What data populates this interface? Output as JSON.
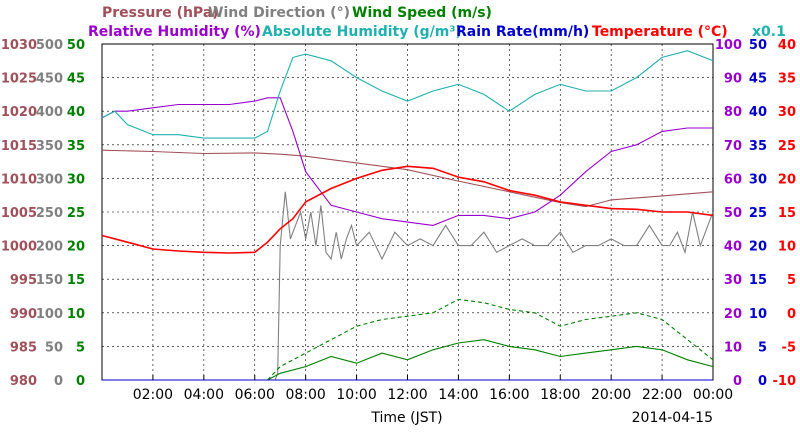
{
  "chart_data": {
    "type": "line",
    "xlabel": "Time (JST)",
    "date": "2014-04-15",
    "x_ticks": [
      "02:00",
      "04:00",
      "06:00",
      "08:00",
      "10:00",
      "12:00",
      "14:00",
      "16:00",
      "18:00",
      "20:00",
      "22:00",
      "00:00"
    ],
    "xlim": [
      0,
      24
    ],
    "grid": true,
    "legend_note": "x0.1",
    "axes": [
      {
        "id": "pressure",
        "label": "Pressure (hPa)",
        "color": "#a0505a",
        "range": [
          980,
          1030
        ],
        "ticks": [
          "980",
          "985",
          "990",
          "995",
          "1000",
          "1005",
          "1010",
          "1015",
          "1020",
          "1025",
          "1030"
        ]
      },
      {
        "id": "wind_dir",
        "label": "Wind Direction (°)",
        "color": "#808080",
        "range": [
          0,
          500
        ],
        "ticks": [
          "0",
          "50",
          "100",
          "150",
          "200",
          "250",
          "300",
          "350",
          "400",
          "450",
          "500"
        ]
      },
      {
        "id": "wind_speed",
        "label": "Wind Speed (m/s)",
        "color": "#008000",
        "range": [
          0,
          50
        ],
        "ticks": [
          "0",
          "5",
          "10",
          "15",
          "20",
          "25",
          "30",
          "35",
          "40",
          "45",
          "50"
        ]
      },
      {
        "id": "rel_hum",
        "label": "Relative Humidity (%)",
        "color": "#9900cc",
        "range": [
          0,
          100
        ],
        "ticks": [
          "0",
          "10",
          "20",
          "30",
          "40",
          "50",
          "60",
          "70",
          "80",
          "90",
          "100"
        ]
      },
      {
        "id": "abs_hum",
        "label": "Absolute Humidity (g/m³)",
        "color": "#20b0b0",
        "range": [
          0,
          50
        ]
      },
      {
        "id": "rain",
        "label": "Rain Rate(mm/h)",
        "color": "#0000cc",
        "range": [
          0,
          50
        ],
        "ticks": [
          "0",
          "5",
          "10",
          "15",
          "20",
          "25",
          "30",
          "35",
          "40",
          "45",
          "50"
        ]
      },
      {
        "id": "temp",
        "label": "Temperature (°C)",
        "color": "#ff0000",
        "range": [
          -10,
          40
        ],
        "ticks": [
          "-10",
          "-5",
          "0",
          "5",
          "10",
          "15",
          "20",
          "25",
          "30",
          "35",
          "40"
        ]
      }
    ],
    "series": [
      {
        "name": "Pressure (hPa)",
        "axis": "pressure",
        "color": "#a0505a",
        "x": [
          0,
          2,
          4,
          6,
          7,
          8,
          10,
          12,
          14,
          16,
          18,
          19,
          20,
          22,
          24
        ],
        "y": [
          1014.2,
          1014,
          1013.7,
          1013.8,
          1013.6,
          1013.3,
          1012.3,
          1011.3,
          1009.6,
          1008,
          1006.4,
          1005.8,
          1006.8,
          1007.4,
          1008
        ]
      },
      {
        "name": "Wind Direction (°)",
        "axis": "wind_dir",
        "color": "#808080",
        "x": [
          6.8,
          6.9,
          7.0,
          7.2,
          7.4,
          7.6,
          7.8,
          8.0,
          8.2,
          8.4,
          8.6,
          8.8,
          9.0,
          9.2,
          9.4,
          9.6,
          9.8,
          10.0,
          10.5,
          11.0,
          11.5,
          12.0,
          12.5,
          13.0,
          13.5,
          14.0,
          14.5,
          15.0,
          15.5,
          16.0,
          16.5,
          17.0,
          17.5,
          18.0,
          18.5,
          19.0,
          19.5,
          20.0,
          20.5,
          21.0,
          21.5,
          22.0,
          22.3,
          22.6,
          22.9,
          23.2,
          23.5,
          23.8,
          24.0
        ],
        "y": [
          0,
          10,
          200,
          280,
          210,
          230,
          250,
          210,
          250,
          200,
          260,
          190,
          180,
          220,
          180,
          210,
          230,
          200,
          220,
          180,
          220,
          200,
          210,
          200,
          230,
          200,
          200,
          220,
          190,
          200,
          210,
          200,
          200,
          220,
          190,
          200,
          200,
          210,
          200,
          200,
          230,
          200,
          200,
          220,
          190,
          250,
          200,
          230,
          250
        ]
      },
      {
        "name": "Wind Speed (m/s)",
        "axis": "wind_speed",
        "color": "#008000",
        "x": [
          6.5,
          7,
          8,
          9,
          10,
          11,
          12,
          13,
          14,
          15,
          16,
          17,
          18,
          19,
          20,
          21,
          22,
          23,
          24
        ],
        "y": [
          0,
          1,
          2,
          3.5,
          2.5,
          4,
          3,
          4.5,
          5.5,
          6,
          5,
          4.5,
          3.5,
          4,
          4.5,
          5,
          4.5,
          3,
          2
        ]
      },
      {
        "name": "Wind Speed (m/s) gust",
        "axis": "wind_speed",
        "color": "#008000",
        "dashed": true,
        "x": [
          6.5,
          7,
          8,
          9,
          10,
          11,
          12,
          13,
          14,
          15,
          16,
          17,
          18,
          19,
          20,
          21,
          22,
          23,
          24
        ],
        "y": [
          0,
          2,
          4,
          6,
          8,
          9,
          9.5,
          10,
          12,
          11.5,
          10.5,
          10,
          8,
          9,
          9.5,
          10,
          9,
          6,
          3
        ]
      },
      {
        "name": "Relative Humidity (%)",
        "axis": "rel_hum",
        "color": "#9900cc",
        "x": [
          0,
          0.5,
          1,
          2,
          3,
          4,
          5,
          6,
          6.5,
          7,
          7.5,
          8,
          9,
          10,
          11,
          12,
          13,
          14,
          15,
          16,
          17,
          18,
          19,
          20,
          21,
          22,
          23,
          24
        ],
        "y": [
          78,
          80,
          80,
          81,
          82,
          82,
          82,
          83,
          84,
          84,
          74,
          62,
          52,
          50,
          48,
          47,
          46,
          49,
          49,
          48,
          50,
          55,
          62,
          68,
          70,
          74,
          75,
          75
        ]
      },
      {
        "name": "Absolute Humidity (g/m³)",
        "axis": "abs_hum",
        "color": "#20b0b0",
        "x": [
          0,
          0.5,
          1,
          2,
          3,
          4,
          5,
          6,
          6.5,
          7,
          7.5,
          8,
          9,
          10,
          11,
          12,
          13,
          14,
          15,
          16,
          17,
          18,
          19,
          20,
          21,
          22,
          23,
          24
        ],
        "y": [
          39,
          40,
          38,
          36.5,
          36.5,
          36,
          36,
          36,
          37,
          43,
          48,
          48.5,
          47.5,
          45,
          43,
          41.5,
          43,
          44,
          42.5,
          40,
          42.5,
          44,
          43,
          43,
          45,
          48,
          49,
          47.5
        ]
      },
      {
        "name": "Temperature (°C)",
        "axis": "temp",
        "color": "#ff0000",
        "x": [
          0,
          1,
          2,
          3,
          4,
          5,
          6,
          6.5,
          7,
          7.5,
          8,
          9,
          10,
          11,
          12,
          13,
          14,
          15,
          16,
          17,
          18,
          19,
          20,
          21,
          22,
          23,
          24
        ],
        "y": [
          11.5,
          10.5,
          9.5,
          9.2,
          9.0,
          8.9,
          9.0,
          10.5,
          12.5,
          14,
          16.5,
          18.5,
          20,
          21.2,
          21.8,
          21.5,
          20.2,
          19.5,
          18.2,
          17.5,
          16.5,
          16,
          15.5,
          15.4,
          15,
          15,
          14.5
        ]
      },
      {
        "name": "Rain Rate(mm/h)",
        "axis": "rain",
        "color": "#0000cc",
        "x": [
          0,
          24
        ],
        "y": [
          0,
          0
        ]
      }
    ]
  }
}
